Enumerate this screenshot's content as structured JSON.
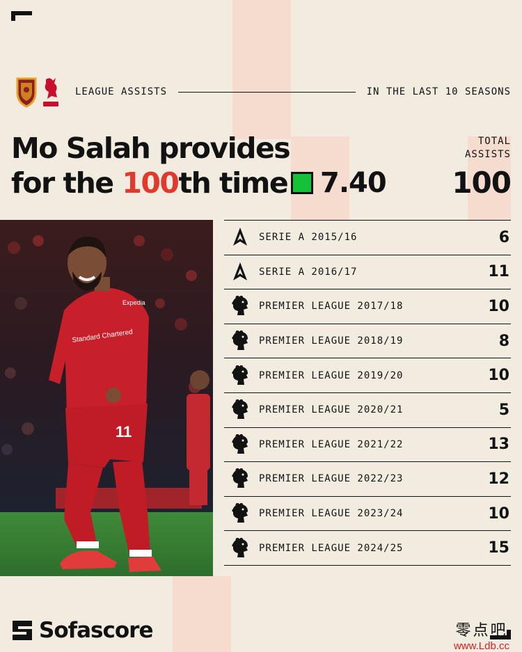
{
  "header": {
    "left_label": "LEAGUE ASSISTS",
    "right_label": "IN THE LAST 10 SEASONS"
  },
  "title": {
    "line1": "Mo Salah provides",
    "line2_pre": "for the ",
    "line2_highlight": "100",
    "line2_post": "th time!"
  },
  "rating": {
    "value": "7.40",
    "color": "#14c23a"
  },
  "total": {
    "label_line1": "TOTAL",
    "label_line2": "ASSISTS",
    "value": "100"
  },
  "seasons": [
    {
      "league": "SERIE A 2015/16",
      "assists": "6",
      "icon": "serie-a-icon"
    },
    {
      "league": "SERIE A 2016/17",
      "assists": "11",
      "icon": "serie-a-icon"
    },
    {
      "league": "PREMIER LEAGUE 2017/18",
      "assists": "10",
      "icon": "premier-league-icon"
    },
    {
      "league": "PREMIER LEAGUE 2018/19",
      "assists": "8",
      "icon": "premier-league-icon"
    },
    {
      "league": "PREMIER LEAGUE 2019/20",
      "assists": "10",
      "icon": "premier-league-icon"
    },
    {
      "league": "PREMIER LEAGUE 2020/21",
      "assists": "5",
      "icon": "premier-league-icon"
    },
    {
      "league": "PREMIER LEAGUE 2021/22",
      "assists": "13",
      "icon": "premier-league-icon"
    },
    {
      "league": "PREMIER LEAGUE 2022/23",
      "assists": "12",
      "icon": "premier-league-icon"
    },
    {
      "league": "PREMIER LEAGUE 2023/24",
      "assists": "10",
      "icon": "premier-league-icon"
    },
    {
      "league": "PREMIER LEAGUE 2024/25",
      "assists": "15",
      "icon": "premier-league-icon"
    }
  ],
  "player_photo": {
    "shirt_number": "11",
    "sponsor": "Standard Chartered",
    "sleeve_sponsor": "Expedia"
  },
  "brand": {
    "name": "Sofascore"
  },
  "watermark": {
    "line1": "零点吧",
    "line2": "www.Ldb.cc"
  },
  "crests": [
    "as-roma-crest",
    "liverpool-fc-crest"
  ],
  "colors": {
    "accent_red": "#e03a2e",
    "background": "#f2ece0",
    "stripe": "#f6dccf"
  }
}
